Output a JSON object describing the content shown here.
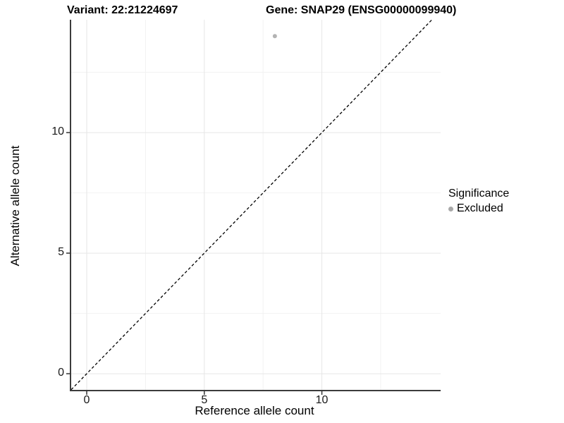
{
  "titles": {
    "variant": "Variant: 22:21224697",
    "gene": "Gene: SNAP29 (ENSG00000099940)"
  },
  "chart_data": {
    "type": "scatter",
    "title": "Variant: 22:21224697   Gene: SNAP29 (ENSG00000099940)",
    "xlabel": "Reference allele count",
    "ylabel": "Alternative allele count",
    "xlim": [
      -0.66,
      15.05
    ],
    "ylim": [
      -0.67,
      14.68
    ],
    "x_ticks": [
      0,
      5,
      10
    ],
    "y_ticks": [
      0,
      5,
      10
    ],
    "x_minor_ticks": [
      2.5,
      7.5,
      12.5
    ],
    "y_minor_ticks": [
      2.5,
      7.5,
      12.5
    ],
    "grid": true,
    "series": [
      {
        "name": "Excluded",
        "points": [
          {
            "x": 8,
            "y": 14
          }
        ],
        "color": "#b3b3b3"
      }
    ],
    "reference_line": {
      "type": "identity",
      "slope": 1,
      "intercept": 0,
      "style": "dashed",
      "color": "#000000"
    },
    "legend": {
      "title": "Significance",
      "position": "right",
      "items": [
        {
          "label": "Excluded",
          "color": "#a8a8a8"
        }
      ]
    }
  },
  "colors": {
    "background": "#ffffff",
    "axis_line": "#3c3c3c",
    "major_grid": "#e6e6e6",
    "minor_grid": "#f2f2f2",
    "tick_mark": "#333333",
    "point": "#b3b3b3"
  }
}
